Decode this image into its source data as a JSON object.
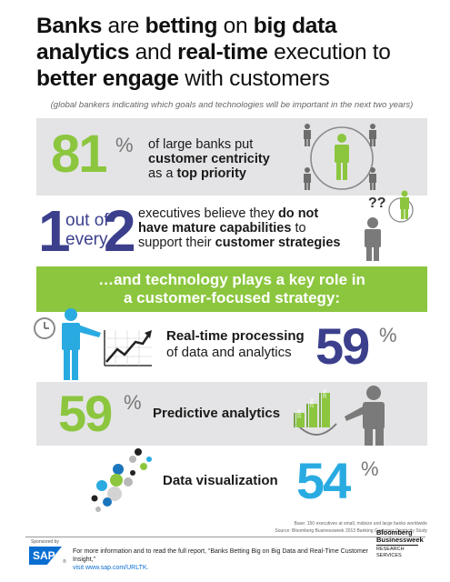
{
  "title": {
    "p1": "Banks",
    "p2": " are ",
    "p3": "betting",
    "p4": " on ",
    "p5": "big data",
    "p6": "analytics",
    "p7": " and ",
    "p8": "real-time",
    "p9": " execution to",
    "p10": "better engage",
    "p11": " with customers"
  },
  "subtitle": "(global bankers indicating which goals and technologies will be important in the next two years)",
  "stat1": {
    "value": "81",
    "unit": "%",
    "line1": "of large banks put",
    "line2": "customer centricity",
    "line3a": "as a ",
    "line3b": "top priority"
  },
  "stat2": {
    "one": "1",
    "outof1": "out of",
    "outof2": "every",
    "two": "2",
    "line1a": "executives believe they ",
    "line1b": "do not",
    "line2": "have mature capabilities",
    "line2b": " to",
    "line3a": "support their ",
    "line3b": "customer strategies",
    "question": "??"
  },
  "tech_banner": {
    "line1": "…and technology plays a key role in",
    "line2": "a customer-focused strategy:"
  },
  "realtime": {
    "line1": "Real-time processing",
    "line2": "of data and analytics",
    "value": "59",
    "unit": "%"
  },
  "predictive": {
    "value": "59",
    "unit": "%",
    "label": "Predictive analytics",
    "bars": [
      "10%",
      "20%",
      "30%"
    ]
  },
  "visualization": {
    "label": "Data visualization",
    "value": "54",
    "unit": "%"
  },
  "base_note": {
    "line1": "Base: 150 executives at small, midsize and large banks worldwide",
    "line2": "Source: Bloomberg Businessweek 2013 Banking Customer Centricity Study"
  },
  "footer": {
    "sponsored": "Sponsored by",
    "sap": "SAP",
    "sap_tm": "®",
    "text": "For more information and to read the full report, “Banks Betting Big on Big Data and Real-Time Customer Insight,”",
    "link": "visit www.sap.com/URLTK.",
    "bb1": "Bloomberg",
    "bb2": "Businessweek",
    "bb3": "RESEARCH",
    "bb4": "SERVICES"
  },
  "colors": {
    "green": "#8cc63f",
    "navy": "#3b3f8c",
    "blue": "#29abe2",
    "grey": "#7a7a7a",
    "band": "#e4e4e6"
  }
}
